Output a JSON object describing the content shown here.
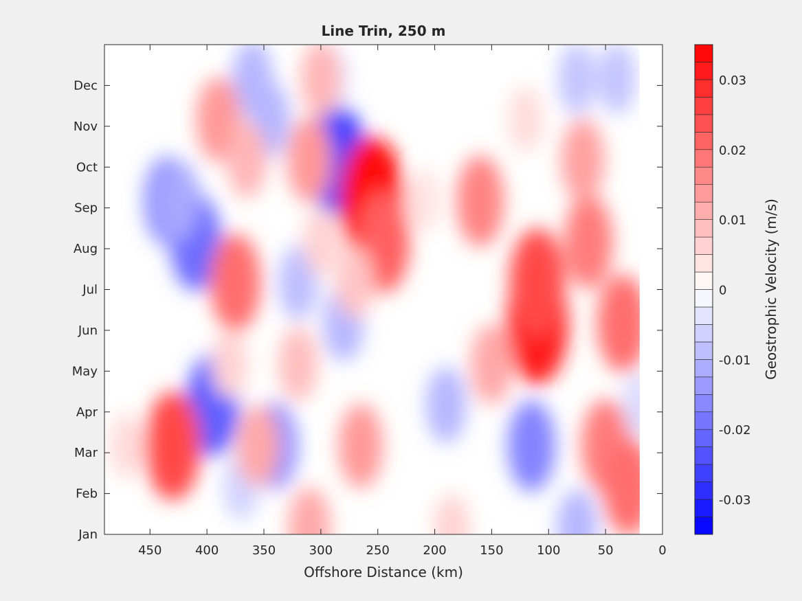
{
  "chart_data": {
    "type": "heatmap",
    "title": "Line Trin, 250 m",
    "xlabel": "Offshore Distance (km)",
    "ylabel": "",
    "xlim": [
      490,
      0
    ],
    "x_reversed": true,
    "x_ticks": [
      450,
      400,
      350,
      300,
      250,
      200,
      150,
      100,
      50,
      0
    ],
    "y_categories": [
      "Jan",
      "Feb",
      "Mar",
      "Apr",
      "May",
      "Jun",
      "Jul",
      "Aug",
      "Sep",
      "Oct",
      "Nov",
      "Dec"
    ],
    "colorbar": {
      "label": "Geostrophic Velocity (m/s)",
      "range": [
        -0.035,
        0.035
      ],
      "levels_step": 0.0025,
      "ticks": [
        0.03,
        0.02,
        0.01,
        0,
        -0.01,
        -0.02,
        -0.03
      ],
      "tick_labels": [
        "0.03",
        "0.02",
        "0.01",
        "0",
        "-0.01",
        "-0.02",
        "-0.03"
      ],
      "colors": {
        "negative": "#0000ff",
        "zero": "#ffffff",
        "positive": "#ff0000"
      }
    },
    "data_extent": {
      "x_min": 20,
      "x_max": 490
    },
    "features": [
      {
        "x": 435,
        "y": "Sep",
        "value": -0.016
      },
      {
        "x": 410,
        "y": "Aug",
        "value": -0.02
      },
      {
        "x": 425,
        "y": "Sep",
        "value": -0.012
      },
      {
        "x": 395,
        "y": "Apr",
        "value": -0.022
      },
      {
        "x": 285,
        "y": "Oct",
        "value": -0.026
      },
      {
        "x": 340,
        "y": "Mar",
        "value": -0.015
      },
      {
        "x": 115,
        "y": "Mar",
        "value": -0.017
      },
      {
        "x": 360,
        "y": "Dec",
        "value": -0.01
      },
      {
        "x": 345,
        "y": "Nov",
        "value": -0.01
      },
      {
        "x": 320,
        "y": "Jul",
        "value": -0.009
      },
      {
        "x": 280,
        "y": "Jun",
        "value": -0.01
      },
      {
        "x": 190,
        "y": "Apr",
        "value": -0.01
      },
      {
        "x": 75,
        "y": "Dec",
        "value": -0.008
      },
      {
        "x": 40,
        "y": "Dec",
        "value": -0.008
      },
      {
        "x": 75,
        "y": "Jan",
        "value": -0.01
      },
      {
        "x": 290,
        "y": "Dec",
        "value": -0.004
      },
      {
        "x": 370,
        "y": "Feb",
        "value": -0.006
      },
      {
        "x": 20,
        "y": "Apr",
        "value": -0.005
      },
      {
        "x": 430,
        "y": "Mar",
        "value": 0.025
      },
      {
        "x": 255,
        "y": "Sep",
        "value": 0.034
      },
      {
        "x": 245,
        "y": "Aug",
        "value": 0.022
      },
      {
        "x": 110,
        "y": "Jun",
        "value": 0.031
      },
      {
        "x": 110,
        "y": "Jul",
        "value": 0.025
      },
      {
        "x": 375,
        "y": "Jul",
        "value": 0.02
      },
      {
        "x": 390,
        "y": "Nov",
        "value": 0.014
      },
      {
        "x": 365,
        "y": "Oct",
        "value": 0.01
      },
      {
        "x": 310,
        "y": "Oct",
        "value": 0.014
      },
      {
        "x": 160,
        "y": "Sep",
        "value": 0.017
      },
      {
        "x": 65,
        "y": "Aug",
        "value": 0.018
      },
      {
        "x": 70,
        "y": "Oct",
        "value": 0.013
      },
      {
        "x": 35,
        "y": "Jun",
        "value": 0.02
      },
      {
        "x": 50,
        "y": "Mar",
        "value": 0.018
      },
      {
        "x": 30,
        "y": "Feb",
        "value": 0.02
      },
      {
        "x": 265,
        "y": "Mar",
        "value": 0.014
      },
      {
        "x": 310,
        "y": "Jan",
        "value": 0.012
      },
      {
        "x": 355,
        "y": "Mar",
        "value": 0.012
      },
      {
        "x": 320,
        "y": "May",
        "value": 0.009
      },
      {
        "x": 300,
        "y": "Dec",
        "value": 0.01
      },
      {
        "x": 150,
        "y": "May",
        "value": 0.012
      },
      {
        "x": 300,
        "y": "Aug",
        "value": 0.006
      },
      {
        "x": 470,
        "y": "Mar",
        "value": 0.005
      },
      {
        "x": 380,
        "y": "May",
        "value": 0.006
      },
      {
        "x": 185,
        "y": "Jan",
        "value": 0.006
      },
      {
        "x": 120,
        "y": "Nov",
        "value": 0.005
      },
      {
        "x": 270,
        "y": "Jul",
        "value": 0.008
      },
      {
        "x": 210,
        "y": "Sep",
        "value": 0.004
      }
    ]
  }
}
